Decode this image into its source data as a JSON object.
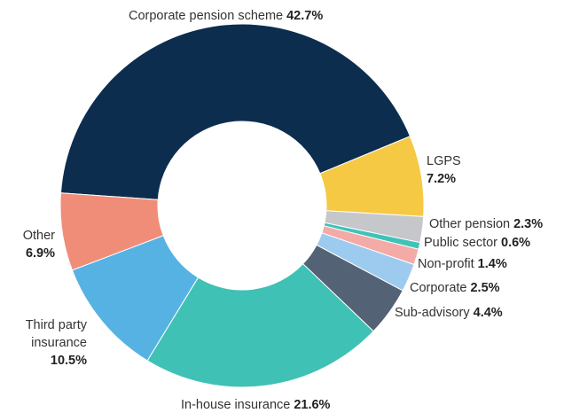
{
  "chart_data": {
    "type": "donut",
    "categories": [
      "Corporate pension scheme",
      "LGPS",
      "Other pension",
      "Public sector",
      "Non-profit",
      "Corporate",
      "Sub-advisory",
      "In-house insurance",
      "Third party insurance",
      "Other"
    ],
    "values": [
      42.7,
      7.2,
      2.3,
      0.6,
      1.4,
      2.5,
      4.4,
      21.6,
      10.5,
      6.9
    ],
    "value_labels": [
      "42.7%",
      "7.2%",
      "2.3%",
      "0.6%",
      "1.4%",
      "2.5%",
      "4.4%",
      "21.6%",
      "10.5%",
      "6.9%"
    ],
    "colors": [
      "#0d2d4f",
      "#f5c944",
      "#c5c7ca",
      "#3fc3b7",
      "#f4aaa6",
      "#9dcbef",
      "#546275",
      "#3fc1b5",
      "#57b2e4",
      "#f08d79"
    ]
  }
}
